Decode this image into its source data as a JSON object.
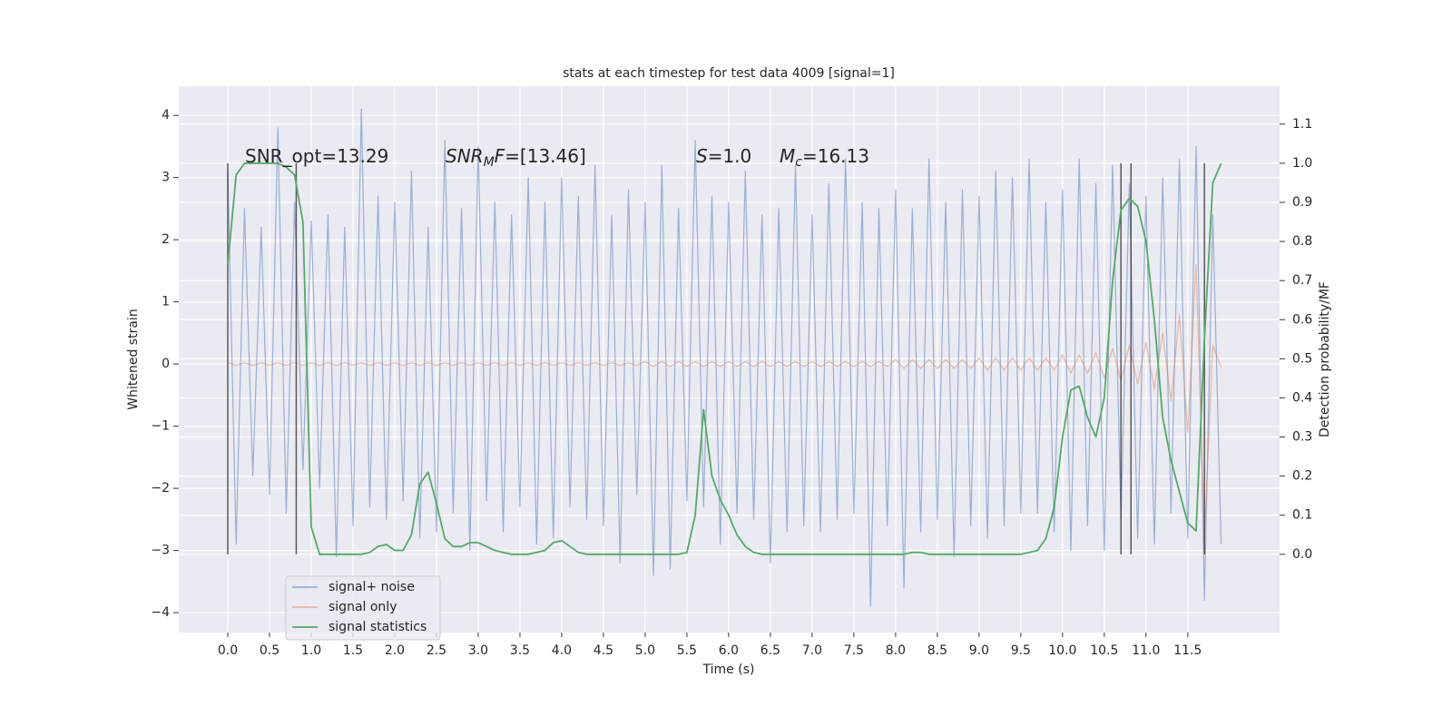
{
  "chart_data": {
    "type": "line",
    "title": "stats at each timestep for test data 4009 [signal=1]",
    "xlabel": "Time (s)",
    "ylabel": "Whitened strain",
    "y2label": "Detection probability/MF",
    "grid": true,
    "legend": "lower left",
    "xlim": [
      -0.587,
      12.6
    ],
    "ylim": [
      -4.32,
      4.47
    ],
    "y2lim": [
      -0.2,
      1.197
    ],
    "xticks": [
      {
        "value": 0,
        "label": "0.0"
      },
      0.5,
      {
        "value": 1,
        "label": "1.0"
      },
      1.5,
      {
        "value": 2,
        "label": "2.0"
      },
      2.5,
      {
        "value": 3,
        "label": "3.0"
      },
      3.5,
      {
        "value": 4,
        "label": "4.0"
      },
      4.5,
      {
        "value": 5,
        "label": "5.0"
      },
      5.5,
      {
        "value": 6,
        "label": "6.0"
      },
      6.5,
      {
        "value": 7,
        "label": "7.0"
      },
      7.5,
      {
        "value": 8,
        "label": "8.0"
      },
      8.5,
      {
        "value": 9,
        "label": "9.0"
      },
      9.5,
      {
        "value": 10,
        "label": "10.0"
      },
      10.5,
      {
        "value": 11,
        "label": "11.0"
      },
      11.5
    ],
    "yticks": [
      {
        "value": -4,
        "label": "−4"
      },
      {
        "value": -3,
        "label": "−3"
      },
      {
        "value": -2,
        "label": "−2"
      },
      {
        "value": -1,
        "label": "−1"
      },
      0,
      1,
      2,
      3,
      4
    ],
    "y2ticks": [
      {
        "value": 0,
        "label": "0.0"
      },
      0.1,
      0.2,
      0.3,
      0.4,
      0.5,
      0.6,
      0.7,
      0.8,
      0.9,
      {
        "value": 1,
        "label": "1.0"
      },
      1.1
    ],
    "x": [
      0,
      0.1,
      0.2,
      0.3,
      0.4,
      0.5,
      0.6,
      0.7,
      0.8,
      0.9,
      1,
      1.1,
      1.2,
      1.3,
      1.4,
      1.5,
      1.6,
      1.7,
      1.8,
      1.9,
      2,
      2.1,
      2.2,
      2.3,
      2.4,
      2.5,
      2.6,
      2.7,
      2.8,
      2.9,
      3,
      3.1,
      3.2,
      3.3,
      3.4,
      3.5,
      3.6,
      3.7,
      3.8,
      3.9,
      4,
      4.1,
      4.2,
      4.3,
      4.4,
      4.5,
      4.6,
      4.7,
      4.8,
      4.9,
      5,
      5.1,
      5.2,
      5.3,
      5.4,
      5.5,
      5.6,
      5.7,
      5.8,
      5.9,
      6,
      6.1,
      6.2,
      6.3,
      6.4,
      6.5,
      6.6,
      6.7,
      6.8,
      6.9,
      7,
      7.1,
      7.2,
      7.3,
      7.4,
      7.5,
      7.6,
      7.7,
      7.8,
      7.9,
      8,
      8.1,
      8.2,
      8.3,
      8.4,
      8.5,
      8.6,
      8.7,
      8.8,
      8.9,
      9,
      9.1,
      9.2,
      9.3,
      9.4,
      9.5,
      9.6,
      9.7,
      9.8,
      9.9,
      10,
      10.1,
      10.2,
      10.3,
      10.4,
      10.5,
      10.6,
      10.7,
      10.8,
      10.9,
      11,
      11.1,
      11.2,
      11.3,
      11.4,
      11.5,
      11.6,
      11.7,
      11.8,
      11.9
    ],
    "series": [
      {
        "name": "signal+ noise",
        "color": "#4c72b0",
        "opacity": 0.5,
        "values": [
          3.1,
          -2.9,
          2.5,
          -1.8,
          2.2,
          -2.1,
          3.8,
          -2.4,
          2.6,
          -1.7,
          2.3,
          -2.0,
          2.4,
          -3.1,
          2.2,
          -2.6,
          4.1,
          -2.3,
          2.7,
          -2.5,
          2.6,
          -2.2,
          3.1,
          -2.8,
          2.2,
          -2.7,
          3.6,
          -2.4,
          2.5,
          -3.0,
          3.5,
          -2.2,
          2.6,
          -2.7,
          2.4,
          -2.3,
          3.0,
          -2.9,
          2.6,
          -2.8,
          3.0,
          -2.3,
          2.7,
          -2.5,
          3.2,
          -2.6,
          2.4,
          -3.2,
          2.8,
          -2.1,
          2.6,
          -3.4,
          3.2,
          -3.3,
          2.5,
          -2.2,
          3.6,
          -2.3,
          2.7,
          -2.9,
          2.6,
          -2.4,
          3.1,
          -2.5,
          2.4,
          -3.2,
          2.5,
          -2.7,
          3.2,
          -2.6,
          2.4,
          -2.7,
          2.9,
          -2.5,
          3.3,
          -2.4,
          2.6,
          -3.9,
          2.5,
          -2.6,
          2.8,
          -3.6,
          2.5,
          -2.7,
          3.3,
          -2.5,
          2.6,
          -3.1,
          2.8,
          -2.6,
          2.7,
          -2.8,
          3.1,
          -2.6,
          3.0,
          -2.4,
          3.3,
          -2.4,
          2.6,
          -2.7,
          2.8,
          -3.0,
          3.3,
          -2.6,
          2.9,
          -3.0,
          3.2,
          -2.5,
          2.9,
          -2.8,
          2.7,
          -2.9,
          3.0,
          -2.4,
          3.3,
          -2.8,
          3.5,
          -3.8,
          2.4,
          -2.9
        ]
      },
      {
        "name": "signal only",
        "color": "#dd8452",
        "opacity": 0.5,
        "values": [
          0.02,
          -0.02,
          0.02,
          -0.02,
          0.02,
          -0.02,
          0.02,
          -0.02,
          0.02,
          -0.02,
          0.02,
          -0.02,
          0.02,
          -0.02,
          0.02,
          -0.02,
          0.02,
          -0.02,
          0.02,
          -0.02,
          0.02,
          -0.02,
          0.02,
          -0.02,
          0.02,
          -0.02,
          0.02,
          -0.02,
          0.02,
          -0.02,
          0.02,
          -0.02,
          0.02,
          -0.02,
          0.02,
          -0.02,
          0.02,
          -0.02,
          0.02,
          -0.02,
          0.02,
          -0.02,
          0.02,
          -0.02,
          0.02,
          -0.02,
          0.02,
          -0.02,
          0.02,
          -0.02,
          0.04,
          -0.04,
          0.04,
          -0.04,
          0.04,
          -0.04,
          0.04,
          -0.04,
          0.04,
          -0.04,
          0.04,
          -0.04,
          0.04,
          -0.04,
          0.04,
          -0.04,
          0.04,
          -0.04,
          0.04,
          -0.04,
          0.04,
          -0.04,
          0.04,
          -0.04,
          0.04,
          -0.04,
          0.04,
          -0.04,
          0.04,
          -0.04,
          0.07,
          -0.07,
          0.07,
          -0.07,
          0.07,
          -0.07,
          0.07,
          -0.07,
          0.07,
          -0.07,
          0.1,
          -0.1,
          0.1,
          -0.1,
          0.1,
          -0.1,
          0.1,
          -0.1,
          0.1,
          -0.1,
          0.15,
          -0.15,
          0.15,
          -0.15,
          0.18,
          -0.22,
          0.25,
          -0.27,
          0.3,
          -0.32,
          0.35,
          -0.4,
          0.5,
          -0.6,
          0.8,
          -1.1,
          1.6,
          -2.8,
          0.3,
          -0.05
        ]
      },
      {
        "name": "signal statistics",
        "color": "#55a868",
        "opacity": 1,
        "axis": "y2",
        "values": [
          0.74,
          0.97,
          1.0,
          1.0,
          1.0,
          1.0,
          1.0,
          0.99,
          0.97,
          0.85,
          0.07,
          0,
          0,
          0,
          0,
          0,
          0,
          0.005,
          0.02,
          0.025,
          0.01,
          0.01,
          0.05,
          0.18,
          0.21,
          0.13,
          0.04,
          0.02,
          0.02,
          0.03,
          0.03,
          0.02,
          0.01,
          0.005,
          0,
          0,
          0,
          0.005,
          0.01,
          0.03,
          0.035,
          0.02,
          0.005,
          0,
          0,
          0,
          0,
          0,
          0,
          0,
          0,
          0,
          0,
          0,
          0,
          0.005,
          0.1,
          0.37,
          0.2,
          0.14,
          0.1,
          0.05,
          0.02,
          0.005,
          0,
          0,
          0,
          0,
          0,
          0,
          0,
          0,
          0,
          0,
          0,
          0,
          0,
          0,
          0,
          0,
          0,
          0,
          0.005,
          0.005,
          0,
          0,
          0,
          0,
          0,
          0,
          0,
          0,
          0,
          0,
          0,
          0,
          0.005,
          0.01,
          0.04,
          0.12,
          0.3,
          0.42,
          0.43,
          0.35,
          0.3,
          0.4,
          0.7,
          0.88,
          0.91,
          0.89,
          0.8,
          0.6,
          0.35,
          0.24,
          0.16,
          0.08,
          0.06,
          0.55,
          0.95,
          1.0
        ]
      }
    ],
    "vlines": [
      0,
      0.82,
      10.7,
      10.82,
      11.7
    ],
    "vline_range": [
      0,
      1
    ],
    "annotations": [
      [
        {
          "text": "SNR_opt=13.29"
        }
      ],
      [
        {
          "text": "SNR",
          "italic": true
        },
        {
          "text": "M",
          "italic": true,
          "sub": true
        },
        {
          "text": "F",
          "italic": true
        },
        {
          "text": "=[13.46]"
        }
      ],
      [
        {
          "text": "S",
          "italic": true
        },
        {
          "text": "=1.0"
        }
      ],
      [
        {
          "text": "M",
          "italic": true
        },
        {
          "text": "c",
          "italic": true,
          "sub": true
        },
        {
          "text": "=16.13"
        }
      ]
    ]
  }
}
